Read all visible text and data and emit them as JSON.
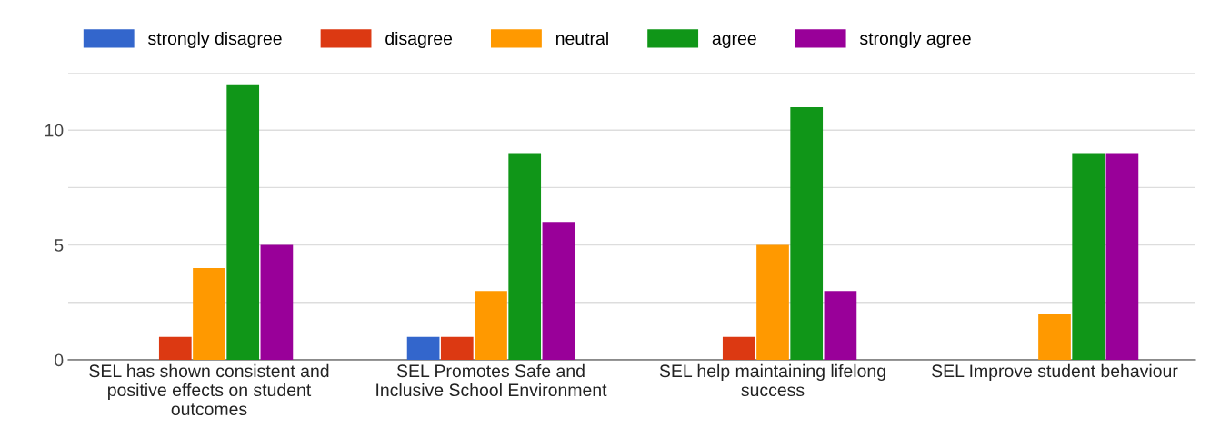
{
  "chart_data": {
    "type": "bar",
    "categories": [
      "SEL has shown consistent and positive effects on student outcomes",
      "SEL Promotes Safe and Inclusive School Environment",
      "SEL help maintaining lifelong success",
      "SEL Improve student behaviour"
    ],
    "series": [
      {
        "name": "strongly disagree",
        "color": "#3366cc",
        "values": [
          0,
          1,
          0,
          0
        ]
      },
      {
        "name": "disagree",
        "color": "#dc3912",
        "values": [
          1,
          1,
          1,
          0
        ]
      },
      {
        "name": "neutral",
        "color": "#ff9900",
        "values": [
          4,
          3,
          5,
          2
        ]
      },
      {
        "name": "agree",
        "color": "#109618",
        "values": [
          12,
          9,
          11,
          9
        ]
      },
      {
        "name": "strongly agree",
        "color": "#990099",
        "values": [
          5,
          6,
          3,
          9
        ]
      }
    ],
    "ylim": [
      0,
      12.5
    ],
    "yticks": [
      0,
      {
        "value": 2.5,
        "label": null
      },
      5,
      {
        "value": 7.5,
        "label": null
      },
      10,
      {
        "value": 12.5,
        "label": null
      }
    ],
    "grid": "y",
    "legend": "top left"
  }
}
